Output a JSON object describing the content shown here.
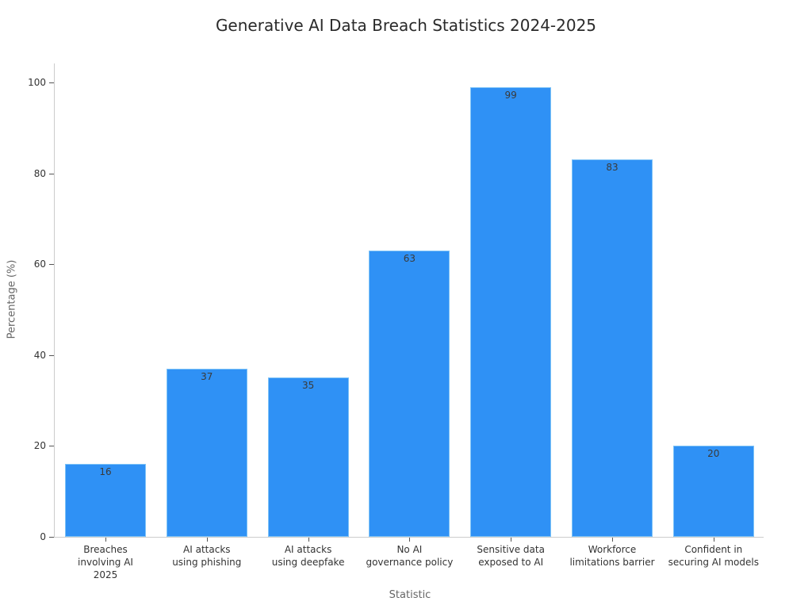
{
  "chart_data": {
    "type": "bar",
    "title": "Generative AI Data Breach Statistics 2024-2025",
    "xlabel": "Statistic",
    "ylabel": "Percentage (%)",
    "categories": [
      "Breaches\ninvolving AI\n2025",
      "AI attacks\nusing phishing",
      "AI attacks\nusing deepfake",
      "No AI\ngovernance policy",
      "Sensitive data\nexposed to AI",
      "Workforce\nlimitations barrier",
      "Confident in\nsecuring AI models"
    ],
    "values": [
      16,
      37,
      35,
      63,
      99,
      83,
      20
    ],
    "ylim": [
      0,
      104
    ],
    "yticks": [
      0,
      20,
      40,
      60,
      80,
      100
    ],
    "grid": false,
    "legend": null,
    "bar_color": "#2f91f5"
  }
}
